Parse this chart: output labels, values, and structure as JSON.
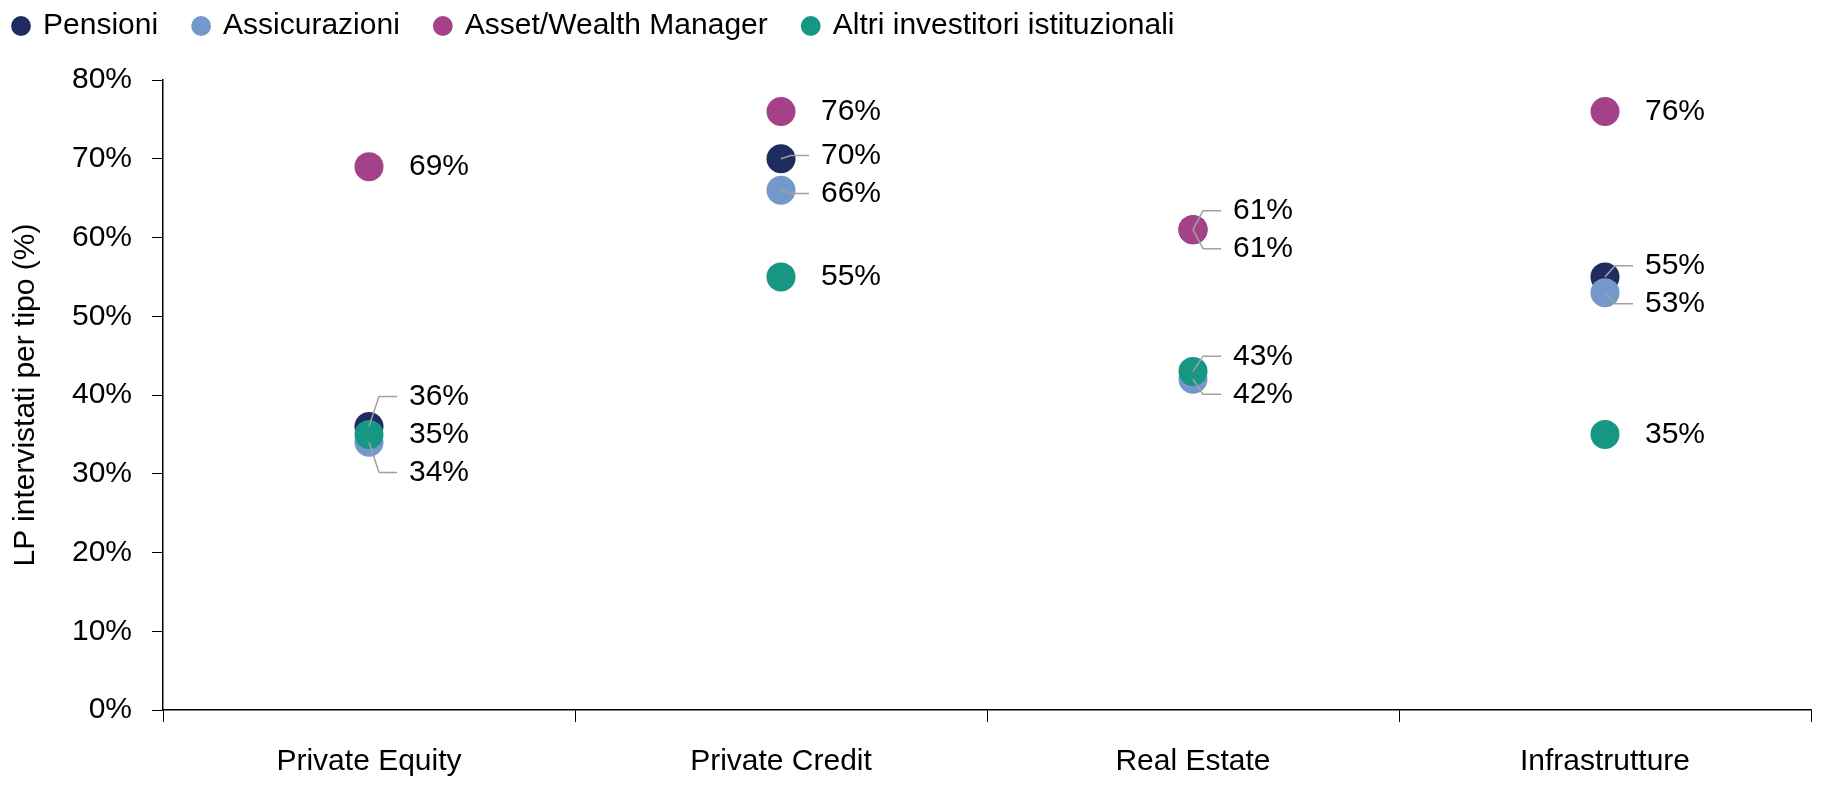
{
  "chart_data": {
    "type": "scatter",
    "ylabel": "LP intervistati per tipo (%)",
    "categories": [
      "Private Equity",
      "Private Credit",
      "Real Estate",
      "Infrastrutture"
    ],
    "series": [
      {
        "name": "Pensioni",
        "color": "#1f2c5f",
        "values": [
          36,
          70,
          61,
          55
        ],
        "value_labels": [
          "36%",
          "70%",
          "61%",
          "55%"
        ]
      },
      {
        "name": "Assicurazioni",
        "color": "#7398c9",
        "values": [
          34,
          66,
          42,
          53
        ],
        "value_labels": [
          "34%",
          "66%",
          "42%",
          "53%"
        ]
      },
      {
        "name": "Asset/Wealth Manager",
        "color": "#a54189",
        "values": [
          69,
          76,
          61,
          76
        ],
        "value_labels": [
          "69%",
          "76%",
          "61%",
          "76%"
        ]
      },
      {
        "name": "Altri investitori istituzionali",
        "color": "#169683",
        "values": [
          35,
          55,
          43,
          35
        ],
        "value_labels": [
          "35%",
          "55%",
          "43%",
          "35%"
        ]
      }
    ],
    "ylim": [
      0,
      80
    ],
    "yticks": [
      {
        "value": 0,
        "label": "0%"
      },
      {
        "value": 10,
        "label": "10%"
      },
      {
        "value": 20,
        "label": "20%"
      },
      {
        "value": 30,
        "label": "30%"
      },
      {
        "value": 40,
        "label": "40%"
      },
      {
        "value": 50,
        "label": "50%"
      },
      {
        "value": 60,
        "label": "60%"
      },
      {
        "value": 70,
        "label": "70%"
      },
      {
        "value": 80,
        "label": "80%"
      }
    ],
    "legend": "top left",
    "marker": "circle"
  }
}
